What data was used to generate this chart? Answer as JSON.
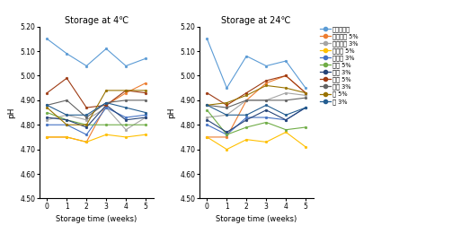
{
  "weeks": [
    0,
    1,
    2,
    3,
    4,
    5
  ],
  "title_4": "Storage at 4℃",
  "title_24": "Storage at 24℃",
  "xlabel": "Storage time (weeks)",
  "ylabel": "pH",
  "ylim": [
    4.5,
    5.2
  ],
  "yticks": [
    4.5,
    4.6,
    4.7,
    4.8,
    4.9,
    5.0,
    5.1,
    5.2
  ],
  "series": [
    {
      "label": "쌍앨고주장",
      "color": "#5B9BD5",
      "marker": "o",
      "data_4": [
        5.15,
        5.09,
        5.04,
        5.11,
        5.04,
        5.07
      ],
      "data_24": [
        5.15,
        4.95,
        5.08,
        5.04,
        5.06,
        4.95
      ]
    },
    {
      "label": "블루베리 5%",
      "color": "#ED7D31",
      "marker": "o",
      "data_4": [
        4.75,
        4.75,
        4.73,
        4.88,
        4.93,
        4.97
      ],
      "data_24": [
        4.75,
        4.75,
        4.9,
        4.97,
        5.0,
        4.93
      ]
    },
    {
      "label": "블루베리 3%",
      "color": "#A5A5A5",
      "marker": "o",
      "data_4": [
        4.82,
        4.84,
        4.82,
        4.87,
        4.78,
        4.83
      ],
      "data_24": [
        4.83,
        4.84,
        4.9,
        4.9,
        4.93,
        4.92
      ]
    },
    {
      "label": "토마토 5%",
      "color": "#FFC000",
      "marker": "o",
      "data_4": [
        4.75,
        4.75,
        4.73,
        4.76,
        4.75,
        4.76
      ],
      "data_24": [
        4.75,
        4.7,
        4.74,
        4.73,
        4.77,
        4.71
      ]
    },
    {
      "label": "토마토 3%",
      "color": "#4472C4",
      "marker": "o",
      "data_4": [
        4.8,
        4.8,
        4.76,
        4.87,
        4.83,
        4.84
      ],
      "data_24": [
        4.8,
        4.76,
        4.83,
        4.83,
        4.82,
        4.87
      ]
    },
    {
      "label": "딸기 5%",
      "color": "#70AD47",
      "marker": "o",
      "data_4": [
        4.85,
        4.82,
        4.8,
        4.8,
        4.8,
        4.8
      ],
      "data_24": [
        4.86,
        4.76,
        4.79,
        4.81,
        4.78,
        4.79
      ]
    },
    {
      "label": "딸기 3%",
      "color": "#264478",
      "marker": "o",
      "data_4": [
        4.83,
        4.82,
        4.79,
        4.88,
        4.82,
        4.83
      ],
      "data_24": [
        4.82,
        4.77,
        4.82,
        4.86,
        4.82,
        4.87
      ]
    },
    {
      "label": "포도 5%",
      "color": "#9E3B14",
      "marker": "o",
      "data_4": [
        4.93,
        4.99,
        4.87,
        4.88,
        4.94,
        4.93
      ],
      "data_24": [
        4.93,
        4.88,
        4.93,
        4.98,
        5.0,
        4.93
      ]
    },
    {
      "label": "포도 3%",
      "color": "#636363",
      "marker": "o",
      "data_4": [
        4.88,
        4.9,
        4.83,
        4.89,
        4.9,
        4.9
      ],
      "data_24": [
        4.88,
        4.87,
        4.9,
        4.9,
        4.9,
        4.91
      ]
    },
    {
      "label": "마 5%",
      "color": "#997300",
      "marker": "o",
      "data_4": [
        4.87,
        4.8,
        4.8,
        4.94,
        4.94,
        4.94
      ],
      "data_24": [
        4.88,
        4.89,
        4.92,
        4.96,
        4.95,
        4.93
      ]
    },
    {
      "label": "마 3%",
      "color": "#255E91",
      "marker": "o",
      "data_4": [
        4.88,
        4.84,
        4.84,
        4.89,
        4.87,
        4.85
      ],
      "data_24": [
        4.88,
        4.84,
        4.84,
        4.88,
        4.84,
        4.87
      ]
    }
  ]
}
